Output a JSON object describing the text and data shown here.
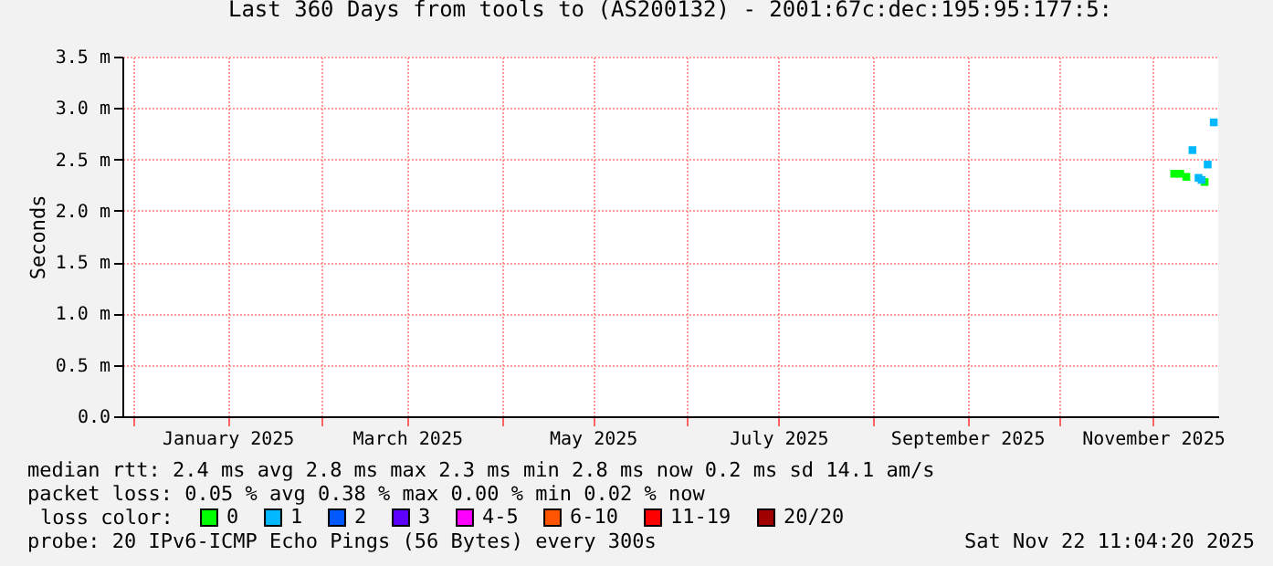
{
  "chart_data": {
    "type": "scatter",
    "title": "Last 360 Days from tools to (AS200132) - 2001:67c:dec:195:95:177:5:",
    "ylabel": "Seconds",
    "legend_title": "loss color:",
    "legend": "bottom",
    "marker": "square",
    "grid": true,
    "xlim": [
      "2024-11-27T11:04",
      "2025-11-22T11:04"
    ],
    "xticks": [
      {
        "value": "2024-12-01",
        "label": null
      },
      {
        "value": "2025-01-01",
        "label": "January 2025"
      },
      {
        "value": "2025-02-01",
        "label": null
      },
      {
        "value": "2025-03-01",
        "label": "March 2025"
      },
      {
        "value": "2025-04-01",
        "label": null
      },
      {
        "value": "2025-05-01",
        "label": "May 2025"
      },
      {
        "value": "2025-06-01",
        "label": null
      },
      {
        "value": "2025-07-01",
        "label": "July 2025"
      },
      {
        "value": "2025-08-01",
        "label": null
      },
      {
        "value": "2025-09-01",
        "label": "September 2025"
      },
      {
        "value": "2025-10-01",
        "label": null
      },
      {
        "value": "2025-11-01",
        "label": "November 2025"
      }
    ],
    "ylim": [
      0,
      3.5
    ],
    "yticks": [
      {
        "value": 0,
        "label": "0.0"
      },
      {
        "value": 0.5,
        "label": "0.5 m"
      },
      {
        "value": 1.0,
        "label": "1.0 m"
      },
      {
        "value": 1.5,
        "label": "1.5 m"
      },
      {
        "value": 2.0,
        "label": "2.0 m"
      },
      {
        "value": 2.5,
        "label": "2.5 m"
      },
      {
        "value": 3.0,
        "label": "3.0 m"
      },
      {
        "value": 3.5,
        "label": "3.5 m"
      }
    ],
    "series": [
      {
        "name": "0",
        "color": "#00ff00",
        "x": [
          "2025-11-08",
          "2025-11-10",
          "2025-11-12",
          "2025-11-18"
        ],
        "values": [
          2.36,
          2.36,
          2.33,
          2.28
        ]
      },
      {
        "name": "1",
        "color": "#00b8ff",
        "x": [
          "2025-11-14",
          "2025-11-16",
          "2025-11-17",
          "2025-11-19",
          "2025-11-21"
        ],
        "values": [
          2.59,
          2.32,
          2.3,
          2.45,
          2.86
        ]
      },
      {
        "name": "2",
        "color": "#0059ff"
      },
      {
        "name": "3",
        "color": "#5e00ff"
      },
      {
        "name": "4-5",
        "color": "#ff00ff"
      },
      {
        "name": "6-10",
        "color": "#ff5500"
      },
      {
        "name": "11-19",
        "color": "#ff0000"
      },
      {
        "name": "20/20",
        "color": "#a10000"
      }
    ],
    "annotations": [
      "median rtt:  2.4 ms avg  2.8 ms max  2.3 ms min  2.8 ms now  0.2 ms sd  14.1   am/s",
      "packet loss: 0.05 % avg  0.38 % max  0.00 % min  0.02 % now",
      "probe:        20 IPv6-ICMP Echo Pings (56 Bytes) every 300s",
      "Sat Nov 22 11:04:20 2025"
    ]
  }
}
